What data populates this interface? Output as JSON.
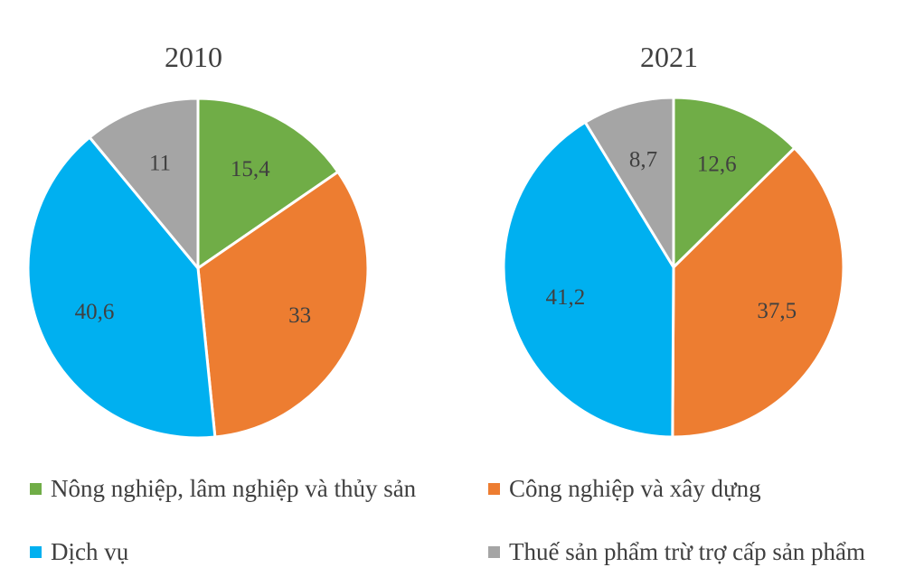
{
  "chart_data": {
    "type": "pie",
    "categories": [
      "Nông nghiệp, lâm nghiệp và thủy sản",
      "Công nghiệp và xây dựng",
      "Dịch vụ",
      "Thuế sản phẩm trừ trợ cấp sản phẩm"
    ],
    "colors": [
      "#70ad47",
      "#ed7d31",
      "#00b0f0",
      "#a5a5a5"
    ],
    "pies": [
      {
        "title": "2010",
        "values": [
          15.4,
          33,
          40.6,
          11
        ],
        "labels": [
          "15,4",
          "33",
          "40,6",
          "11"
        ]
      },
      {
        "title": "2021",
        "values": [
          12.6,
          37.5,
          41.2,
          8.7
        ],
        "labels": [
          "12,6",
          "37,5",
          "41,2",
          "8,7"
        ]
      }
    ],
    "legend_position": "bottom"
  }
}
